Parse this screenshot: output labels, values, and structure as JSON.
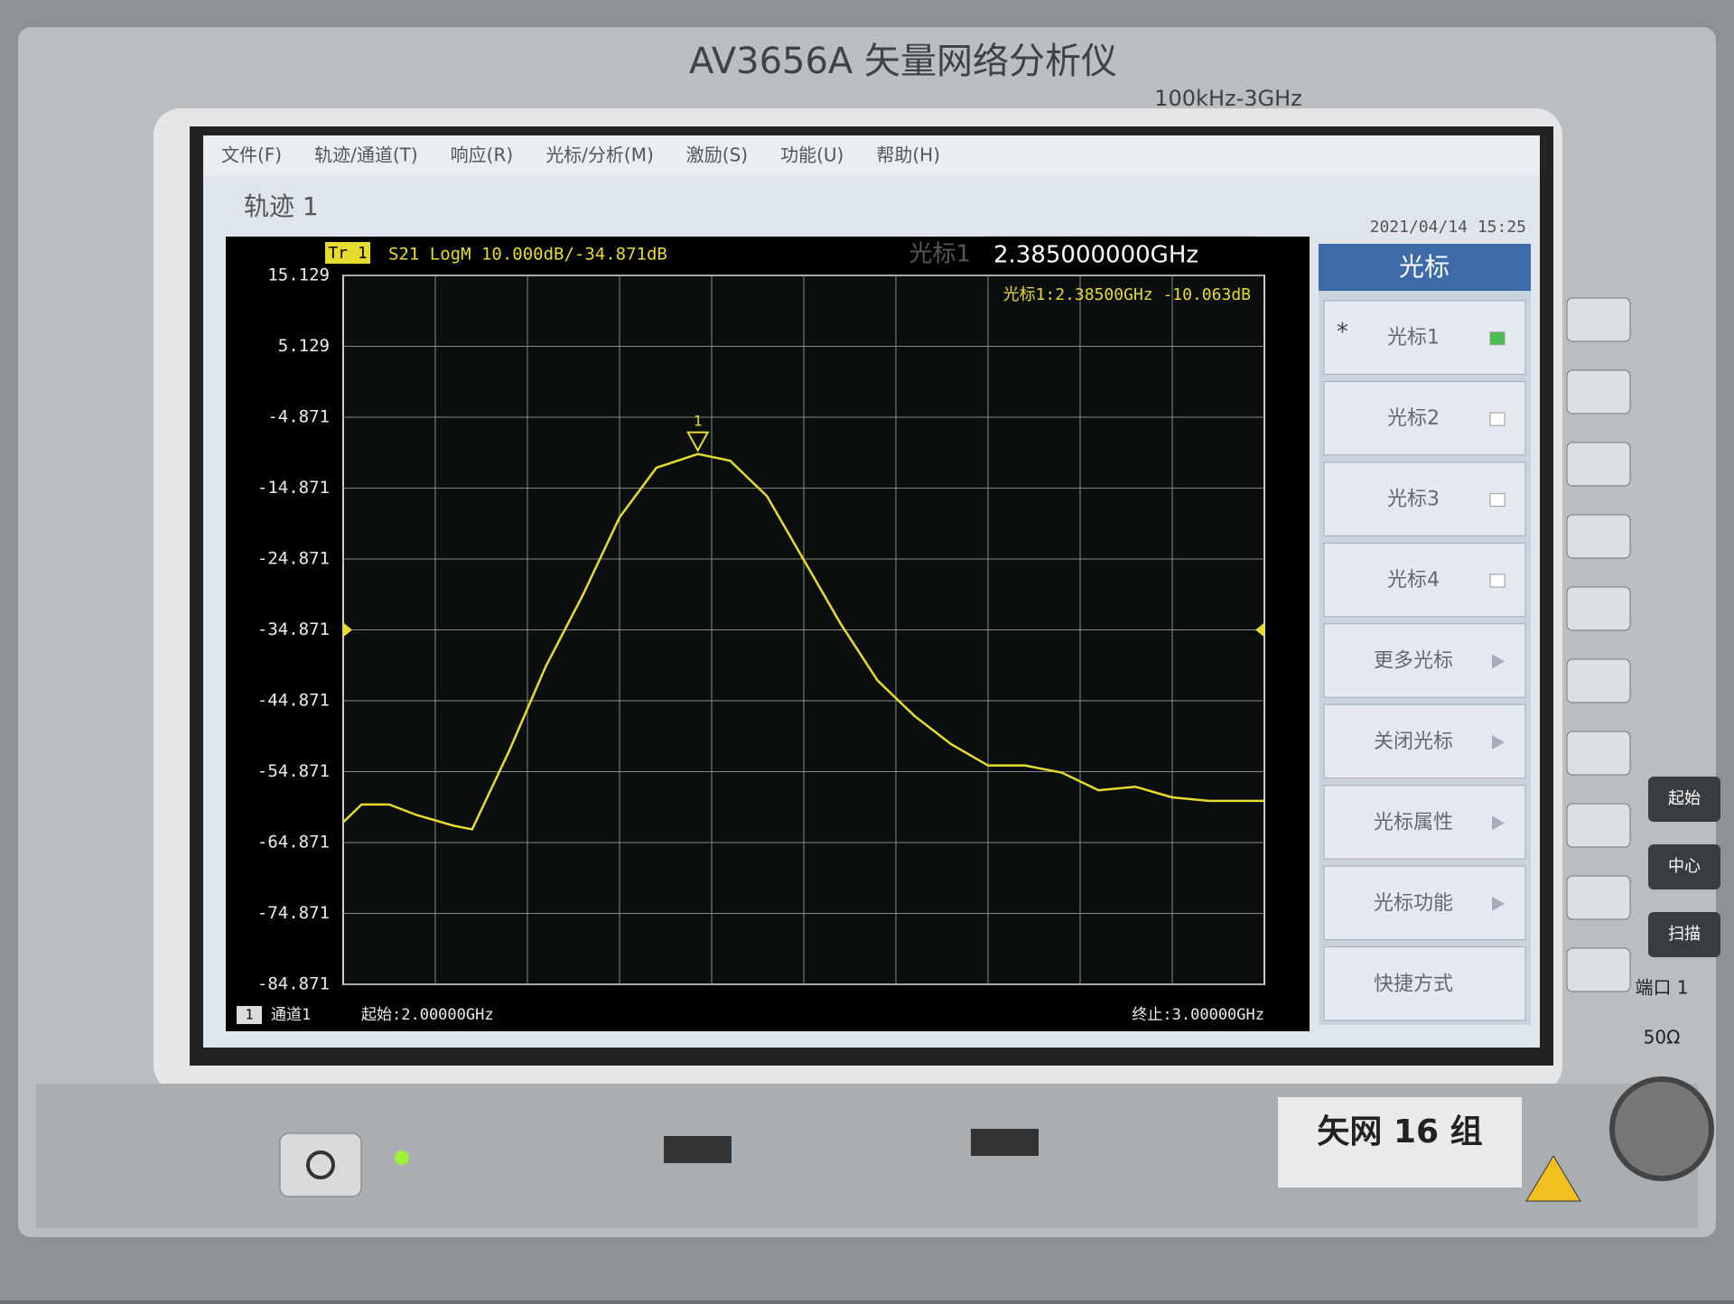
{
  "device": {
    "brand": "AV3656A 矢量网络分析仪",
    "range": "100kHz-3GHz",
    "group_label": "矢网 16 组",
    "port": "端口 1",
    "impedance": "50Ω",
    "keys": [
      "起始",
      "中心",
      "扫描"
    ]
  },
  "menu": [
    "文件(F)",
    "轨迹/通道(T)",
    "响应(R)",
    "光标/分析(M)",
    "激励(S)",
    "功能(U)",
    "帮助(H)"
  ],
  "trace_title": "轨迹 1",
  "datetime": "2021/04/14 15:25",
  "marker_input": {
    "label": "光标1",
    "value": "2.385000000GHz"
  },
  "softkeys": {
    "title": "光标",
    "active_mark": "*",
    "items": [
      "光标1",
      "光标2",
      "光标3",
      "光标4",
      "更多光标",
      "关闭光标",
      "光标属性",
      "光标功能",
      "快捷方式"
    ]
  },
  "chart_data": {
    "type": "line",
    "trace_tag": "Tr 1",
    "header": "S21 LogM 10.000dB/-34.871dB",
    "ref_level": -34.871,
    "x": [
      2.0,
      2.02,
      2.05,
      2.08,
      2.12,
      2.14,
      2.18,
      2.22,
      2.26,
      2.3,
      2.34,
      2.385,
      2.42,
      2.46,
      2.5,
      2.54,
      2.58,
      2.62,
      2.66,
      2.7,
      2.74,
      2.78,
      2.82,
      2.86,
      2.9,
      2.94,
      3.0
    ],
    "values": [
      -62,
      -59.5,
      -59.5,
      -61,
      -62.5,
      -63,
      -52,
      -40,
      -30,
      -19,
      -12,
      -10.063,
      -11,
      -16,
      -25,
      -34,
      -42,
      -47,
      -51,
      -54,
      -54,
      -55,
      -57.5,
      -57,
      -58.5,
      -59,
      -59
    ],
    "color": "#e6dc2e",
    "xlim": [
      2,
      3
    ],
    "ylim": [
      -84.871,
      15.129
    ],
    "yticks": [
      15.129,
      5.129,
      -4.871,
      -14.871,
      -24.871,
      -34.871,
      -44.871,
      -54.871,
      -64.871,
      -74.871,
      -84.871
    ],
    "grid": true,
    "marker": {
      "x": 2.385,
      "y": -10.063,
      "label": "1",
      "text": "光标1:2.38500GHz -10.063dB"
    },
    "channel": "1",
    "channel_label": "通道1",
    "start_label": "起始:2.00000GHz",
    "stop_label": "终止:3.00000GHz"
  }
}
